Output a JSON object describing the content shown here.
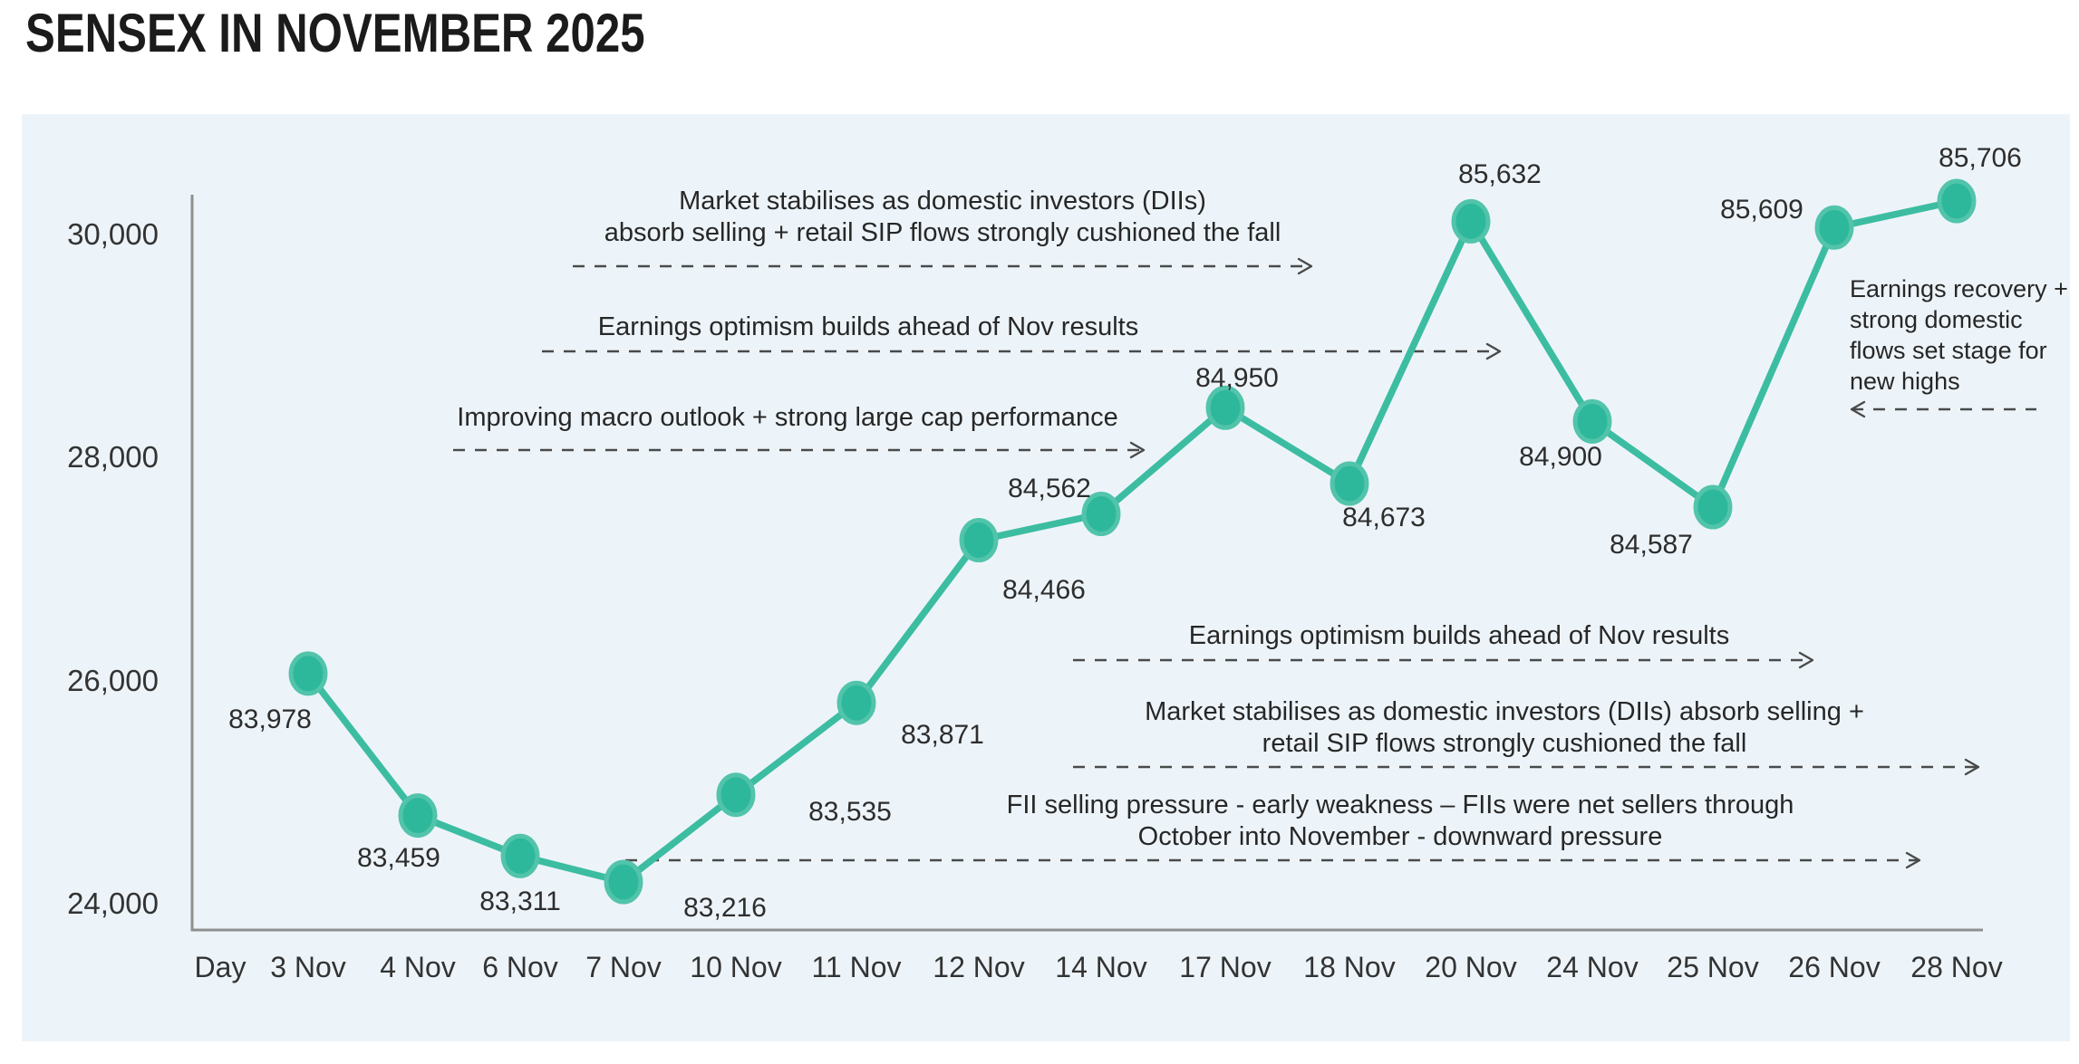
{
  "page_title": "SENSEX IN NOVEMBER 2025",
  "colors": {
    "panel_bg": "#edf4f9",
    "line": "#3cbda2",
    "marker_fill": "#2eb89b",
    "marker_ring": "#52c4ab",
    "axis": "#8f8f8f",
    "arrow": "#4a4a4a",
    "text": "#262626"
  },
  "chart_data": {
    "type": "line",
    "title": "SENSEX IN NOVEMBER 2025",
    "x_axis_header": "Day",
    "categories": [
      "3 Nov",
      "4 Nov",
      "6 Nov",
      "7 Nov",
      "10 Nov",
      "11 Nov",
      "12 Nov",
      "14 Nov",
      "17 Nov",
      "18 Nov",
      "20 Nov",
      "24 Nov",
      "25 Nov",
      "26 Nov",
      "28 Nov"
    ],
    "values": [
      83978,
      83459,
      83311,
      83216,
      83535,
      83871,
      84466,
      84562,
      84950,
      84673,
      85632,
      84900,
      84587,
      85609,
      85706
    ],
    "point_labels": [
      "83,978",
      "83,459",
      "83,311",
      "83,216",
      "83,535",
      "83,871",
      "84,466",
      "84,562",
      "84,950",
      "84,673",
      "85,632",
      "84,900",
      "84,587",
      "85,609",
      "85,706"
    ],
    "y_ticks": {
      "labels": [
        "30,000",
        "28,000",
        "26,000",
        "24,000"
      ],
      "values": [
        30000,
        28000,
        26000,
        24000
      ]
    },
    "grid": false,
    "legend": false,
    "annotations": [
      {
        "id": "stabilises-top",
        "lines": [
          "Market stabilises as domestic investors (DIIs)",
          "absorb selling + retail SIP flows strongly cushioned the fall"
        ],
        "arrow_direction": "right"
      },
      {
        "id": "earnings-optimism-top",
        "lines": [
          "Earnings optimism builds ahead of Nov results"
        ],
        "arrow_direction": "right"
      },
      {
        "id": "macro-outlook",
        "lines": [
          "Improving macro outlook + strong large cap performance"
        ],
        "arrow_direction": "right"
      },
      {
        "id": "earnings-recovery",
        "lines": [
          "Earnings recovery +",
          "strong domestic",
          "flows set stage for",
          "new highs"
        ],
        "arrow_direction": "left"
      },
      {
        "id": "earnings-optimism-lower",
        "lines": [
          "Earnings optimism builds ahead of Nov results"
        ],
        "arrow_direction": "right"
      },
      {
        "id": "stabilises-lower",
        "lines": [
          "Market stabilises as domestic investors (DIIs) absorb selling +",
          "retail SIP flows strongly cushioned the fall"
        ],
        "arrow_direction": "right"
      },
      {
        "id": "fii-selling",
        "lines": [
          "FII selling pressure - early weakness – FIIs were net sellers through",
          "October into November - downward pressure"
        ],
        "arrow_direction": "right"
      }
    ]
  }
}
